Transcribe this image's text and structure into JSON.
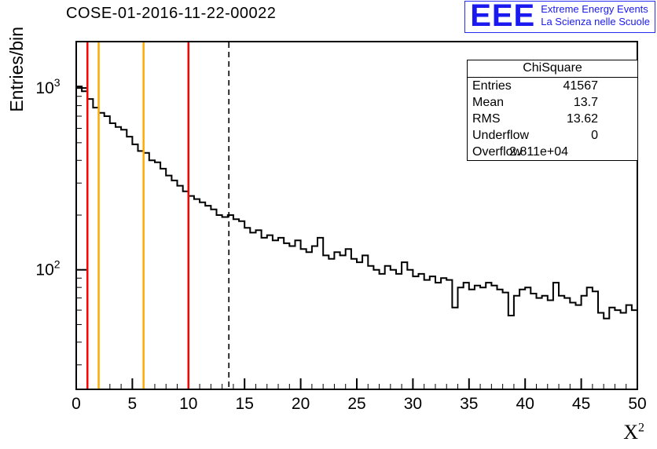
{
  "logo": {
    "letters": "EEE",
    "line1": "Extreme Energy Events",
    "line2": "La Scienza nelle Scuole",
    "color": "#1a1af0"
  },
  "axes": {
    "ylabel": "Entries/bin",
    "xlabel_base": "X",
    "xlabel_exp": "2"
  },
  "stats": {
    "title": "ChiSquare",
    "rows": [
      {
        "label": "Entries",
        "value": "41567"
      },
      {
        "label": "Mean",
        "value": "13.7"
      },
      {
        "label": "RMS",
        "value": "13.62"
      },
      {
        "label": "Underflow",
        "value": "0"
      },
      {
        "label": "Overflow",
        "value": "2.811e+04"
      }
    ]
  },
  "chart_data": {
    "type": "histogram",
    "style": "step-line",
    "title": "COSE-01-2016-11-22-00022",
    "xlabel": "X^2",
    "ylabel": "Entries/bin",
    "xlim": [
      0,
      50
    ],
    "x_major_step": 5,
    "x_minor_step": 1,
    "yscale": "log",
    "ylim": [
      22,
      1800
    ],
    "yticks_labeled": [
      "10^2",
      "10^3"
    ],
    "grid": false,
    "line_color": "#000000",
    "x_start": 0,
    "bin_width": 0.5,
    "values": [
      1020,
      960,
      870,
      780,
      730,
      700,
      640,
      610,
      590,
      540,
      490,
      450,
      440,
      400,
      390,
      360,
      330,
      310,
      290,
      270,
      255,
      245,
      235,
      225,
      215,
      200,
      195,
      200,
      190,
      185,
      170,
      160,
      165,
      150,
      155,
      145,
      150,
      140,
      135,
      145,
      130,
      125,
      135,
      150,
      120,
      115,
      125,
      120,
      130,
      115,
      110,
      120,
      105,
      100,
      95,
      105,
      100,
      95,
      110,
      100,
      92,
      95,
      88,
      92,
      85,
      90,
      88,
      62,
      80,
      85,
      78,
      82,
      80,
      85,
      82,
      78,
      75,
      56,
      72,
      78,
      80,
      74,
      70,
      72,
      68,
      85,
      72,
      70,
      66,
      64,
      72,
      80,
      76,
      58,
      54,
      62,
      60,
      58,
      64,
      60
    ],
    "vlines": [
      {
        "x": 1,
        "color": "#ff0000",
        "style": "solid",
        "width": 2.5
      },
      {
        "x": 2,
        "color": "#ffaa00",
        "style": "solid",
        "width": 2.5
      },
      {
        "x": 6,
        "color": "#ffaa00",
        "style": "solid",
        "width": 2.5
      },
      {
        "x": 10,
        "color": "#ff0000",
        "style": "solid",
        "width": 2.5
      },
      {
        "x": 13.6,
        "color": "#000000",
        "style": "dashed",
        "width": 1.6
      }
    ]
  }
}
